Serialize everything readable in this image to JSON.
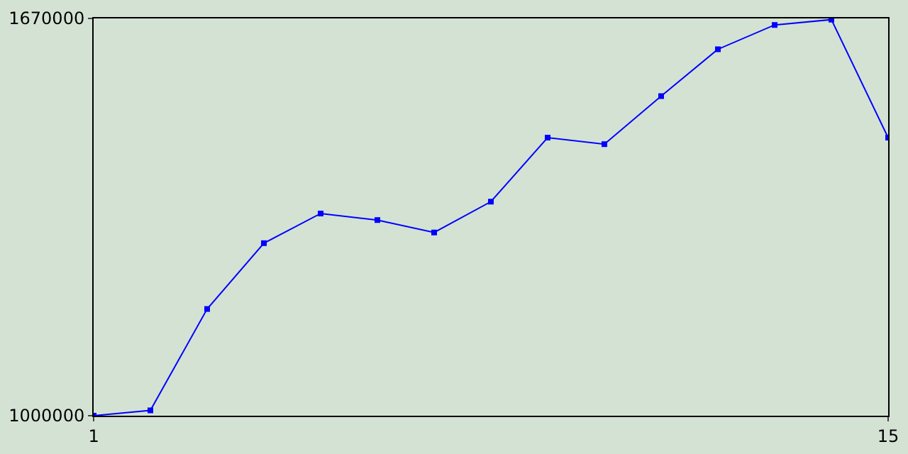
{
  "chart_data": {
    "type": "line",
    "x": [
      1,
      2,
      3,
      4,
      5,
      6,
      7,
      8,
      9,
      10,
      11,
      12,
      13,
      14,
      15
    ],
    "series": [
      {
        "color": "#0000ff",
        "values": [
          1000000,
          1009000,
          1180000,
          1291000,
          1341000,
          1330000,
          1309000,
          1361000,
          1469000,
          1458000,
          1539000,
          1618000,
          1659000,
          1668000,
          1469000
        ]
      }
    ],
    "xlim": [
      1,
      15
    ],
    "ylim": [
      1000000,
      1670000
    ],
    "xticks": [
      1,
      15
    ],
    "yticks": [
      1000000,
      1670000
    ],
    "marker": "square",
    "line_style": "solid",
    "legend": false
  }
}
